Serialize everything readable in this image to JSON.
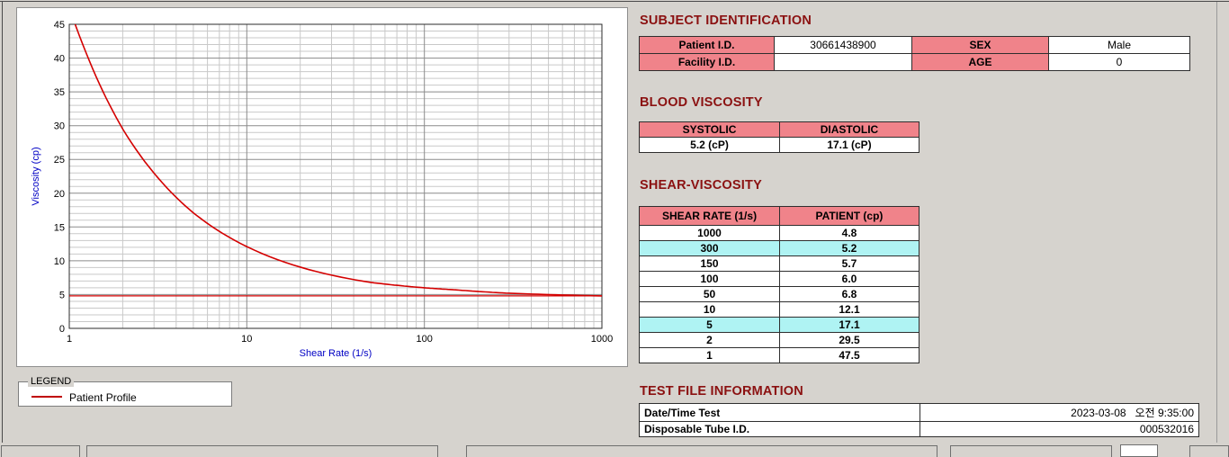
{
  "chart_data": {
    "type": "line",
    "title": "",
    "xlabel": "Shear Rate (1/s)",
    "ylabel": "Viscosity (cp)",
    "x_scale": "log",
    "x_ticks": [
      1,
      10,
      100,
      1000
    ],
    "y_ticks": [
      0,
      5,
      10,
      15,
      20,
      25,
      30,
      35,
      40,
      45
    ],
    "xlim": [
      1,
      1000
    ],
    "ylim": [
      0,
      45
    ],
    "grid": "dense minor grid on",
    "baseline_y": 4.8,
    "series": {
      "name": "Patient Profile",
      "color": "#d40000",
      "x": [
        1,
        2,
        5,
        10,
        50,
        100,
        150,
        300,
        1000
      ],
      "y": [
        47.5,
        29.5,
        17.1,
        12.1,
        6.8,
        6.0,
        5.7,
        5.2,
        4.8
      ]
    }
  },
  "legend": {
    "title": "LEGEND",
    "item": "Patient Profile",
    "line_color": "#c00000"
  },
  "subject": {
    "title": "SUBJECT IDENTIFICATION",
    "rows": [
      {
        "l1": "Patient I.D.",
        "v1": "30661438900",
        "l2": "SEX",
        "v2": "Male"
      },
      {
        "l1": "Facility I.D.",
        "v1": "",
        "l2": "AGE",
        "v2": "0"
      }
    ]
  },
  "blood": {
    "title": "BLOOD VISCOSITY",
    "col1": "SYSTOLIC",
    "col2": "DIASTOLIC",
    "val1": "5.2 (cP)",
    "val2": "17.1 (cP)"
  },
  "shear": {
    "title": "SHEAR-VISCOSITY",
    "col1": "SHEAR RATE (1/s)",
    "col2": "PATIENT (cp)",
    "rows": [
      {
        "rate": "1000",
        "cp": "4.8",
        "highlight": false
      },
      {
        "rate": "300",
        "cp": "5.2",
        "highlight": true
      },
      {
        "rate": "150",
        "cp": "5.7",
        "highlight": false
      },
      {
        "rate": "100",
        "cp": "6.0",
        "highlight": false
      },
      {
        "rate": "50",
        "cp": "6.8",
        "highlight": false
      },
      {
        "rate": "10",
        "cp": "12.1",
        "highlight": false
      },
      {
        "rate": "5",
        "cp": "17.1",
        "highlight": true
      },
      {
        "rate": "2",
        "cp": "29.5",
        "highlight": false
      },
      {
        "rate": "1",
        "cp": "47.5",
        "highlight": false
      }
    ]
  },
  "testfile": {
    "title": "TEST FILE INFORMATION",
    "rows": [
      {
        "label": "Date/Time Test",
        "value": "2023-03-08   오전 9:35:00"
      },
      {
        "label": "Disposable Tube I.D.",
        "value": "000532016"
      }
    ]
  },
  "colors": {
    "heading": "#8b1111",
    "table_header_bg": "#f0838a",
    "highlight_bg": "#aff3f3",
    "curve": "#d40000",
    "axis_label": "#0000c4"
  }
}
